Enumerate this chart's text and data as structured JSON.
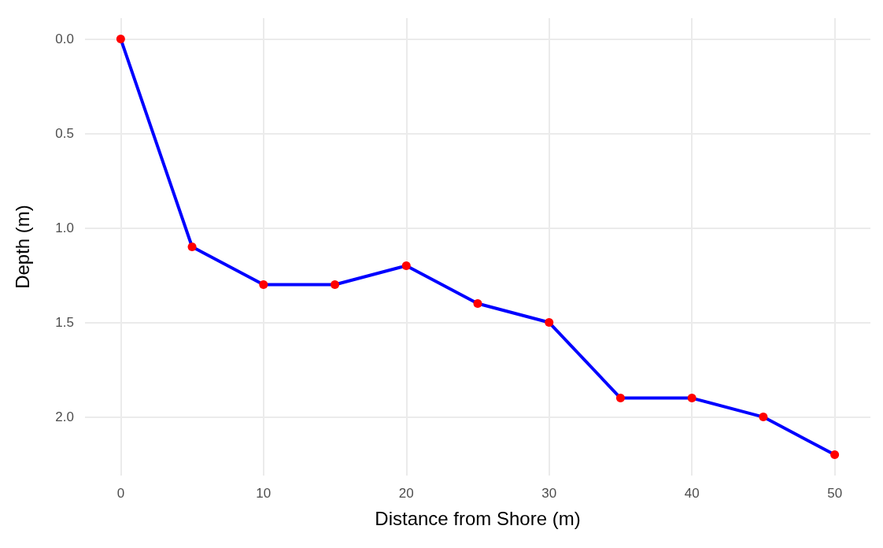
{
  "chart_data": {
    "type": "line",
    "xlabel": "Distance from Shore (m)",
    "ylabel": "Depth (m)",
    "x": [
      0,
      5,
      10,
      15,
      20,
      25,
      30,
      35,
      40,
      45,
      50
    ],
    "series": [
      {
        "color": "#0000ff",
        "colors": [
          "#ff0000",
          "#ff0000",
          "#ff0000",
          "#ff0000",
          "#ff0000",
          "#ff0000",
          "#ff0000",
          "#ff0000",
          "#ff0000",
          "#ff0000",
          "#ff0000"
        ],
        "values": [
          0,
          1.1,
          1.3,
          1.3,
          1.2,
          1.4,
          1.5,
          1.9,
          1.9,
          2.0,
          2.2
        ]
      }
    ],
    "xlim": [
      -2.5,
      52.5
    ],
    "xticks": [
      0,
      10,
      20,
      30,
      40,
      50
    ],
    "ylim": [
      2.31,
      -0.11
    ],
    "yticks": [
      {
        "value": 0,
        "label": "0.0"
      },
      {
        "value": 0.5,
        "label": "0.5"
      },
      {
        "value": 1,
        "label": "1.0"
      },
      {
        "value": 1.5,
        "label": "1.5"
      },
      {
        "value": 2,
        "label": "2.0"
      }
    ],
    "grid": true,
    "marker": "circle",
    "line_style": "solid"
  }
}
